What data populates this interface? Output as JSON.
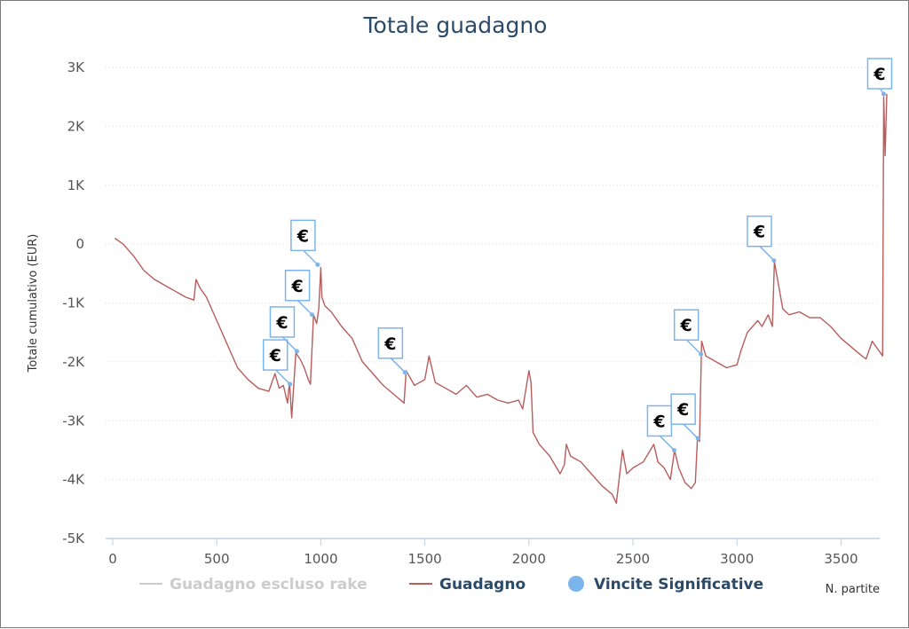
{
  "chart_data": {
    "type": "line",
    "title": "Totale guadagno",
    "ylabel": "Totale cumulativo (EUR)",
    "xlabel": "N. partite",
    "xlim": [
      0,
      3720
    ],
    "ylim": [
      -5000,
      3000
    ],
    "x_ticks": [
      0,
      500,
      1000,
      1500,
      2000,
      2500,
      3000,
      3500
    ],
    "y_ticks": [
      3000,
      2000,
      1000,
      0,
      -1000,
      -2000,
      -3000,
      -4000,
      -5000
    ],
    "x_tick_labels": [
      "0",
      "500",
      "1000",
      "1500",
      "2000",
      "2500",
      "3000",
      "3500"
    ],
    "y_tick_labels": [
      "3K",
      "2K",
      "1K",
      "0",
      "-1K",
      "-2K",
      "-3K",
      "-4K",
      "-5K"
    ],
    "grid": "horizontal dotted",
    "legend_position": "bottom",
    "legend": [
      {
        "name": "Guadagno escluso rake",
        "color": "#cccccc",
        "marker": "line",
        "active": false
      },
      {
        "name": "Guadagno",
        "color": "#b85c5c",
        "marker": "line",
        "active": true
      },
      {
        "name": "Vincite Significative",
        "color": "#7cb5ec",
        "marker": "dot",
        "active": true
      }
    ],
    "series": [
      {
        "name": "Guadagno",
        "color": "#b85c5c",
        "points": [
          [
            10,
            100
          ],
          [
            50,
            0
          ],
          [
            100,
            -200
          ],
          [
            150,
            -450
          ],
          [
            200,
            -600
          ],
          [
            250,
            -700
          ],
          [
            300,
            -800
          ],
          [
            350,
            -900
          ],
          [
            390,
            -950
          ],
          [
            400,
            -600
          ],
          [
            420,
            -750
          ],
          [
            450,
            -900
          ],
          [
            500,
            -1300
          ],
          [
            550,
            -1700
          ],
          [
            600,
            -2100
          ],
          [
            650,
            -2300
          ],
          [
            700,
            -2450
          ],
          [
            750,
            -2500
          ],
          [
            780,
            -2200
          ],
          [
            800,
            -2450
          ],
          [
            820,
            -2400
          ],
          [
            840,
            -2700
          ],
          [
            845,
            -2500
          ],
          [
            850,
            -2350
          ],
          [
            860,
            -2950
          ],
          [
            870,
            -2400
          ],
          [
            880,
            -1850
          ],
          [
            900,
            -1950
          ],
          [
            920,
            -2100
          ],
          [
            940,
            -2300
          ],
          [
            950,
            -2380
          ],
          [
            965,
            -1200
          ],
          [
            980,
            -1350
          ],
          [
            990,
            -1100
          ],
          [
            1000,
            -400
          ],
          [
            1005,
            -900
          ],
          [
            1020,
            -1050
          ],
          [
            1050,
            -1150
          ],
          [
            1100,
            -1400
          ],
          [
            1150,
            -1600
          ],
          [
            1200,
            -2000
          ],
          [
            1250,
            -2200
          ],
          [
            1300,
            -2400
          ],
          [
            1350,
            -2550
          ],
          [
            1400,
            -2700
          ],
          [
            1410,
            -2150
          ],
          [
            1450,
            -2400
          ],
          [
            1500,
            -2300
          ],
          [
            1520,
            -1900
          ],
          [
            1550,
            -2350
          ],
          [
            1600,
            -2450
          ],
          [
            1650,
            -2550
          ],
          [
            1700,
            -2400
          ],
          [
            1750,
            -2600
          ],
          [
            1800,
            -2550
          ],
          [
            1850,
            -2650
          ],
          [
            1900,
            -2700
          ],
          [
            1950,
            -2650
          ],
          [
            1970,
            -2800
          ],
          [
            2000,
            -2150
          ],
          [
            2010,
            -2350
          ],
          [
            2020,
            -3200
          ],
          [
            2050,
            -3400
          ],
          [
            2100,
            -3600
          ],
          [
            2150,
            -3900
          ],
          [
            2170,
            -3750
          ],
          [
            2180,
            -3400
          ],
          [
            2200,
            -3600
          ],
          [
            2250,
            -3700
          ],
          [
            2300,
            -3900
          ],
          [
            2350,
            -4100
          ],
          [
            2400,
            -4250
          ],
          [
            2420,
            -4400
          ],
          [
            2450,
            -3500
          ],
          [
            2470,
            -3900
          ],
          [
            2500,
            -3800
          ],
          [
            2550,
            -3700
          ],
          [
            2600,
            -3400
          ],
          [
            2620,
            -3700
          ],
          [
            2650,
            -3800
          ],
          [
            2680,
            -4000
          ],
          [
            2700,
            -3500
          ],
          [
            2720,
            -3800
          ],
          [
            2750,
            -4050
          ],
          [
            2780,
            -4150
          ],
          [
            2800,
            -4050
          ],
          [
            2810,
            -3300
          ],
          [
            2820,
            -3350
          ],
          [
            2830,
            -1650
          ],
          [
            2850,
            -1900
          ],
          [
            2900,
            -2000
          ],
          [
            2950,
            -2100
          ],
          [
            3000,
            -2050
          ],
          [
            3020,
            -1800
          ],
          [
            3050,
            -1500
          ],
          [
            3100,
            -1300
          ],
          [
            3120,
            -1400
          ],
          [
            3150,
            -1200
          ],
          [
            3170,
            -1400
          ],
          [
            3180,
            -300
          ],
          [
            3200,
            -700
          ],
          [
            3220,
            -1100
          ],
          [
            3250,
            -1200
          ],
          [
            3300,
            -1150
          ],
          [
            3350,
            -1250
          ],
          [
            3400,
            -1250
          ],
          [
            3450,
            -1400
          ],
          [
            3500,
            -1600
          ],
          [
            3550,
            -1750
          ],
          [
            3600,
            -1900
          ],
          [
            3620,
            -1950
          ],
          [
            3650,
            -1650
          ],
          [
            3680,
            -1800
          ],
          [
            3700,
            -1900
          ],
          [
            3705,
            2500
          ],
          [
            3712,
            1500
          ],
          [
            3720,
            2550
          ]
        ]
      },
      {
        "name": "Vincite Significative",
        "color": "#7cb5ec",
        "label": "€",
        "points": [
          [
            852,
            -2380
          ],
          [
            885,
            -1820
          ],
          [
            958,
            -1200
          ],
          [
            985,
            -350
          ],
          [
            1405,
            -2180
          ],
          [
            2698,
            -3500
          ],
          [
            2812,
            -3300
          ],
          [
            2827,
            -1870
          ],
          [
            3178,
            -280
          ],
          [
            3705,
            2550
          ]
        ]
      }
    ]
  }
}
